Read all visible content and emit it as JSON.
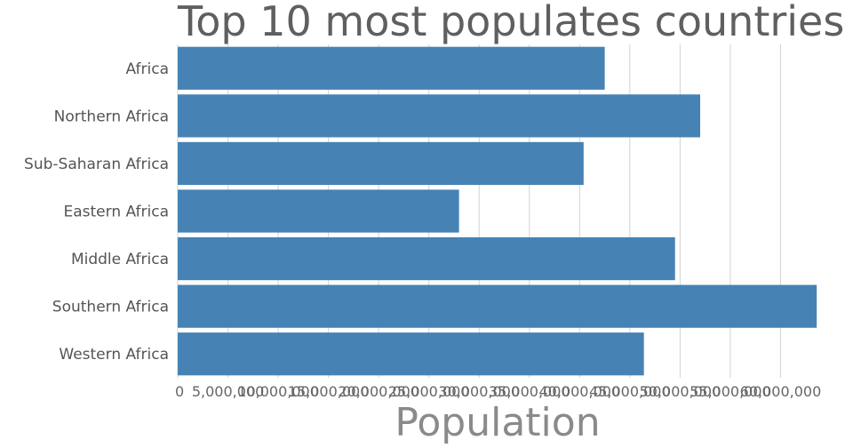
{
  "chart_data": {
    "type": "bar",
    "orientation": "horizontal",
    "title": "Top 10 most populates countries",
    "xlabel": "Population",
    "ylabel": "",
    "categories": [
      "Africa",
      "Northern Africa",
      "Sub-Saharan Africa",
      "Eastern Africa",
      "Middle Africa",
      "Southern Africa",
      "Western Africa"
    ],
    "values": [
      42500000,
      52000000,
      40400000,
      28000000,
      49500000,
      63600000,
      46400000
    ],
    "xlim": [
      0,
      65000000
    ],
    "x_ticks": [
      0,
      5000000,
      10000000,
      15000000,
      20000000,
      25000000,
      30000000,
      35000000,
      40000000,
      45000000,
      50000000,
      55000000,
      60000000
    ],
    "x_tick_labels": [
      "0",
      "5,000,000",
      "10,000,000",
      "15,000,000",
      "20,000,000",
      "25,000,000",
      "30,000,000",
      "35,000,000",
      "40,000,000",
      "45,000,000",
      "50,000,000",
      "55,000,000",
      "60,000,000"
    ],
    "grid": true,
    "bar_color": "#4682b4"
  }
}
